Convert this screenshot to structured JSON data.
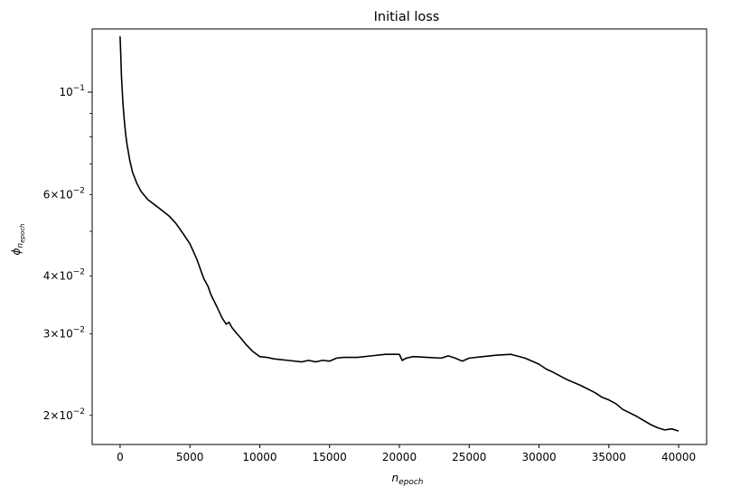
{
  "chart_data": {
    "type": "line",
    "title": "Initial loss",
    "xlabel": "n",
    "xlabel_sub": "epoch",
    "ylabel": "ϕ",
    "ylabel_sub": "n",
    "ylabel_subsub": "epoch",
    "y_scale": "log",
    "xlim": [
      -2000,
      42000
    ],
    "ylim": [
      0.0173,
      0.137
    ],
    "grid": false,
    "x_ticks": [
      {
        "value": 0,
        "label": "0"
      },
      {
        "value": 5000,
        "label": "5000"
      },
      {
        "value": 10000,
        "label": "10000"
      },
      {
        "value": 15000,
        "label": "15000"
      },
      {
        "value": 20000,
        "label": "20000"
      },
      {
        "value": 25000,
        "label": "25000"
      },
      {
        "value": 30000,
        "label": "30000"
      },
      {
        "value": 35000,
        "label": "35000"
      },
      {
        "value": 40000,
        "label": "40000"
      }
    ],
    "y_major_ticks": [
      {
        "value": 0.1,
        "mantissa": "",
        "base": "10",
        "exp": "−1"
      }
    ],
    "y_minor_ticks": [
      {
        "value": 0.02,
        "mantissa": "2×",
        "base": "10",
        "exp": "−2"
      },
      {
        "value": 0.03,
        "mantissa": "3×",
        "base": "10",
        "exp": "−2"
      },
      {
        "value": 0.04,
        "mantissa": "4×",
        "base": "10",
        "exp": "−2"
      },
      {
        "value": 0.05,
        "mantissa": "",
        "base": "",
        "exp": ""
      },
      {
        "value": 0.06,
        "mantissa": "6×",
        "base": "10",
        "exp": "−2"
      },
      {
        "value": 0.07,
        "mantissa": "",
        "base": "",
        "exp": ""
      },
      {
        "value": 0.08,
        "mantissa": "",
        "base": "",
        "exp": ""
      },
      {
        "value": 0.09,
        "mantissa": "",
        "base": "",
        "exp": ""
      }
    ],
    "line_color": "#000000",
    "series": [
      {
        "x": [
          0,
          50,
          100,
          200,
          300,
          400,
          500,
          700,
          900,
          1200,
          1500,
          2000,
          2500,
          3000,
          3500,
          4000,
          4500,
          5000,
          5500,
          5800,
          6000,
          6300,
          6500,
          6800,
          7000,
          7300,
          7600,
          7800,
          8000,
          8300,
          8600,
          9000,
          9500,
          10000,
          10500,
          11000,
          12000,
          13000,
          13500,
          14000,
          14500,
          15000,
          15500,
          16000,
          17000,
          18000,
          19000,
          20000,
          20200,
          20500,
          21000,
          22000,
          23000,
          23500,
          24000,
          24500,
          25000,
          26000,
          27000,
          28000,
          29000,
          30000,
          30500,
          31000,
          32000,
          33000,
          34000,
          34500,
          35000,
          35500,
          36000,
          37000,
          38000,
          38500,
          39000,
          39500,
          40000
        ],
        "y": [
          0.132,
          0.12,
          0.108,
          0.095,
          0.087,
          0.081,
          0.077,
          0.071,
          0.067,
          0.0635,
          0.061,
          0.0585,
          0.057,
          0.0555,
          0.054,
          0.052,
          0.0495,
          0.047,
          0.0435,
          0.041,
          0.0395,
          0.038,
          0.0365,
          0.035,
          0.034,
          0.0325,
          0.0315,
          0.0318,
          0.031,
          0.0302,
          0.0295,
          0.0285,
          0.0275,
          0.0268,
          0.0267,
          0.0265,
          0.0263,
          0.0261,
          0.0263,
          0.0261,
          0.0263,
          0.0262,
          0.0266,
          0.0267,
          0.0267,
          0.0269,
          0.0271,
          0.0271,
          0.0263,
          0.0266,
          0.0268,
          0.0267,
          0.0266,
          0.0269,
          0.0266,
          0.0262,
          0.0266,
          0.0268,
          0.027,
          0.0271,
          0.0266,
          0.0258,
          0.0252,
          0.0248,
          0.0239,
          0.0232,
          0.0224,
          0.0219,
          0.0216,
          0.0212,
          0.0206,
          0.0199,
          0.0191,
          0.0188,
          0.0186,
          0.0187,
          0.0185
        ]
      }
    ]
  }
}
